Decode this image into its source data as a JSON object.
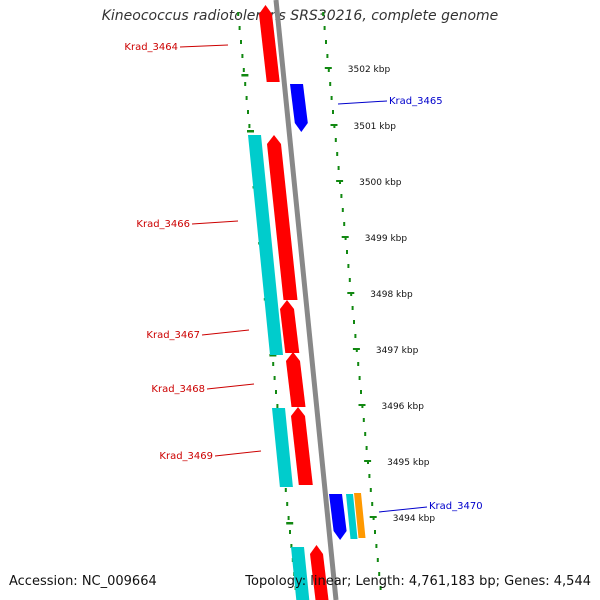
{
  "title": "Kineococcus radiotolerans SRS30216, complete genome",
  "footer": {
    "accession": "Accession: NC_009664",
    "summary": "Topology: linear; Length: 4,761,183 bp; Genes: 4,544"
  },
  "colors": {
    "forward_gene": "#ff0000",
    "reverse_gene": "#0000ff",
    "cds_feature": "#00cccc",
    "orange_feature": "#ff9900",
    "backbone": "#888888",
    "tick_marks": "#118811",
    "forward_label": "#cc0000",
    "reverse_label": "#0000cc"
  },
  "ticks": [
    {
      "label": "3502 kbp"
    },
    {
      "label": "3501 kbp"
    },
    {
      "label": "3500 kbp"
    },
    {
      "label": "3499 kbp"
    },
    {
      "label": "3498 kbp"
    },
    {
      "label": "3497 kbp"
    },
    {
      "label": "3496 kbp"
    },
    {
      "label": "3495 kbp"
    },
    {
      "label": "3494 kbp"
    }
  ],
  "genes": [
    {
      "name": "Krad_3464",
      "strand": "forward"
    },
    {
      "name": "Krad_3465",
      "strand": "reverse"
    },
    {
      "name": "Krad_3466",
      "strand": "forward"
    },
    {
      "name": "Krad_3467",
      "strand": "forward"
    },
    {
      "name": "Krad_3468",
      "strand": "forward"
    },
    {
      "name": "Krad_3469",
      "strand": "forward"
    },
    {
      "name": "Krad_3470",
      "strand": "reverse"
    }
  ]
}
